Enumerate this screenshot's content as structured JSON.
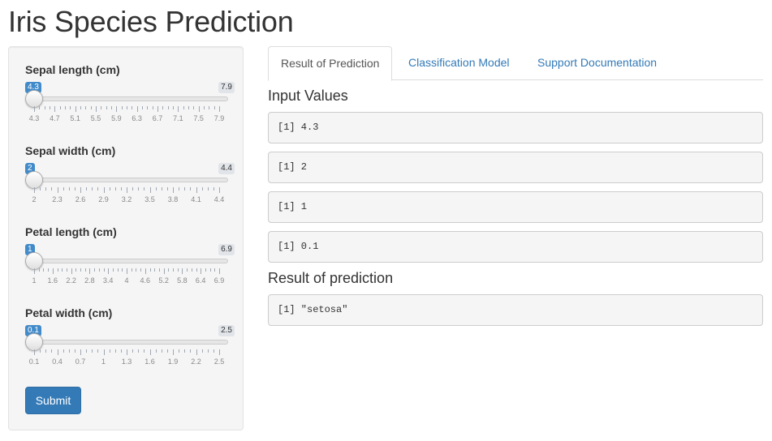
{
  "page": {
    "title": "Iris Species Prediction"
  },
  "sidebar": {
    "sliders": [
      {
        "label": "Sepal length (cm)",
        "value": 4.3,
        "min": 4.3,
        "max": 7.9,
        "value_label": "4.3",
        "max_label": "7.9",
        "ticks": [
          "4.3",
          "4.7",
          "5.1",
          "5.5",
          "5.9",
          "6.3",
          "6.7",
          "7.1",
          "7.5",
          "7.9"
        ]
      },
      {
        "label": "Sepal width (cm)",
        "value": 2,
        "min": 2,
        "max": 4.4,
        "value_label": "2",
        "max_label": "4.4",
        "ticks": [
          "2",
          "2.3",
          "2.6",
          "2.9",
          "3.2",
          "3.5",
          "3.8",
          "4.1",
          "4.4"
        ]
      },
      {
        "label": "Petal length (cm)",
        "value": 1,
        "min": 1,
        "max": 6.9,
        "value_label": "1",
        "max_label": "6.9",
        "ticks": [
          "1",
          "1.6",
          "2.2",
          "2.8",
          "3.4",
          "4",
          "4.6",
          "5.2",
          "5.8",
          "6.4",
          "6.9"
        ]
      },
      {
        "label": "Petal width (cm)",
        "value": 0.1,
        "min": 0.1,
        "max": 2.5,
        "value_label": "0.1",
        "max_label": "2.5",
        "ticks": [
          "0.1",
          "0.4",
          "0.7",
          "1",
          "1.3",
          "1.6",
          "1.9",
          "2.2",
          "2.5"
        ]
      }
    ],
    "submit_label": "Submit"
  },
  "main": {
    "tabs": [
      {
        "label": "Result of Prediction",
        "active": true
      },
      {
        "label": "Classification Model",
        "active": false
      },
      {
        "label": "Support Documentation",
        "active": false
      }
    ],
    "input_values_title": "Input Values",
    "input_values": [
      "[1] 4.3",
      "[1] 2",
      "[1] 1",
      "[1] 0.1"
    ],
    "result_title": "Result of prediction",
    "result_value": "[1] \"setosa\""
  },
  "colors": {
    "accent": "#337ab7",
    "badge_blue": "#428bca",
    "well_bg": "#f5f5f5"
  }
}
